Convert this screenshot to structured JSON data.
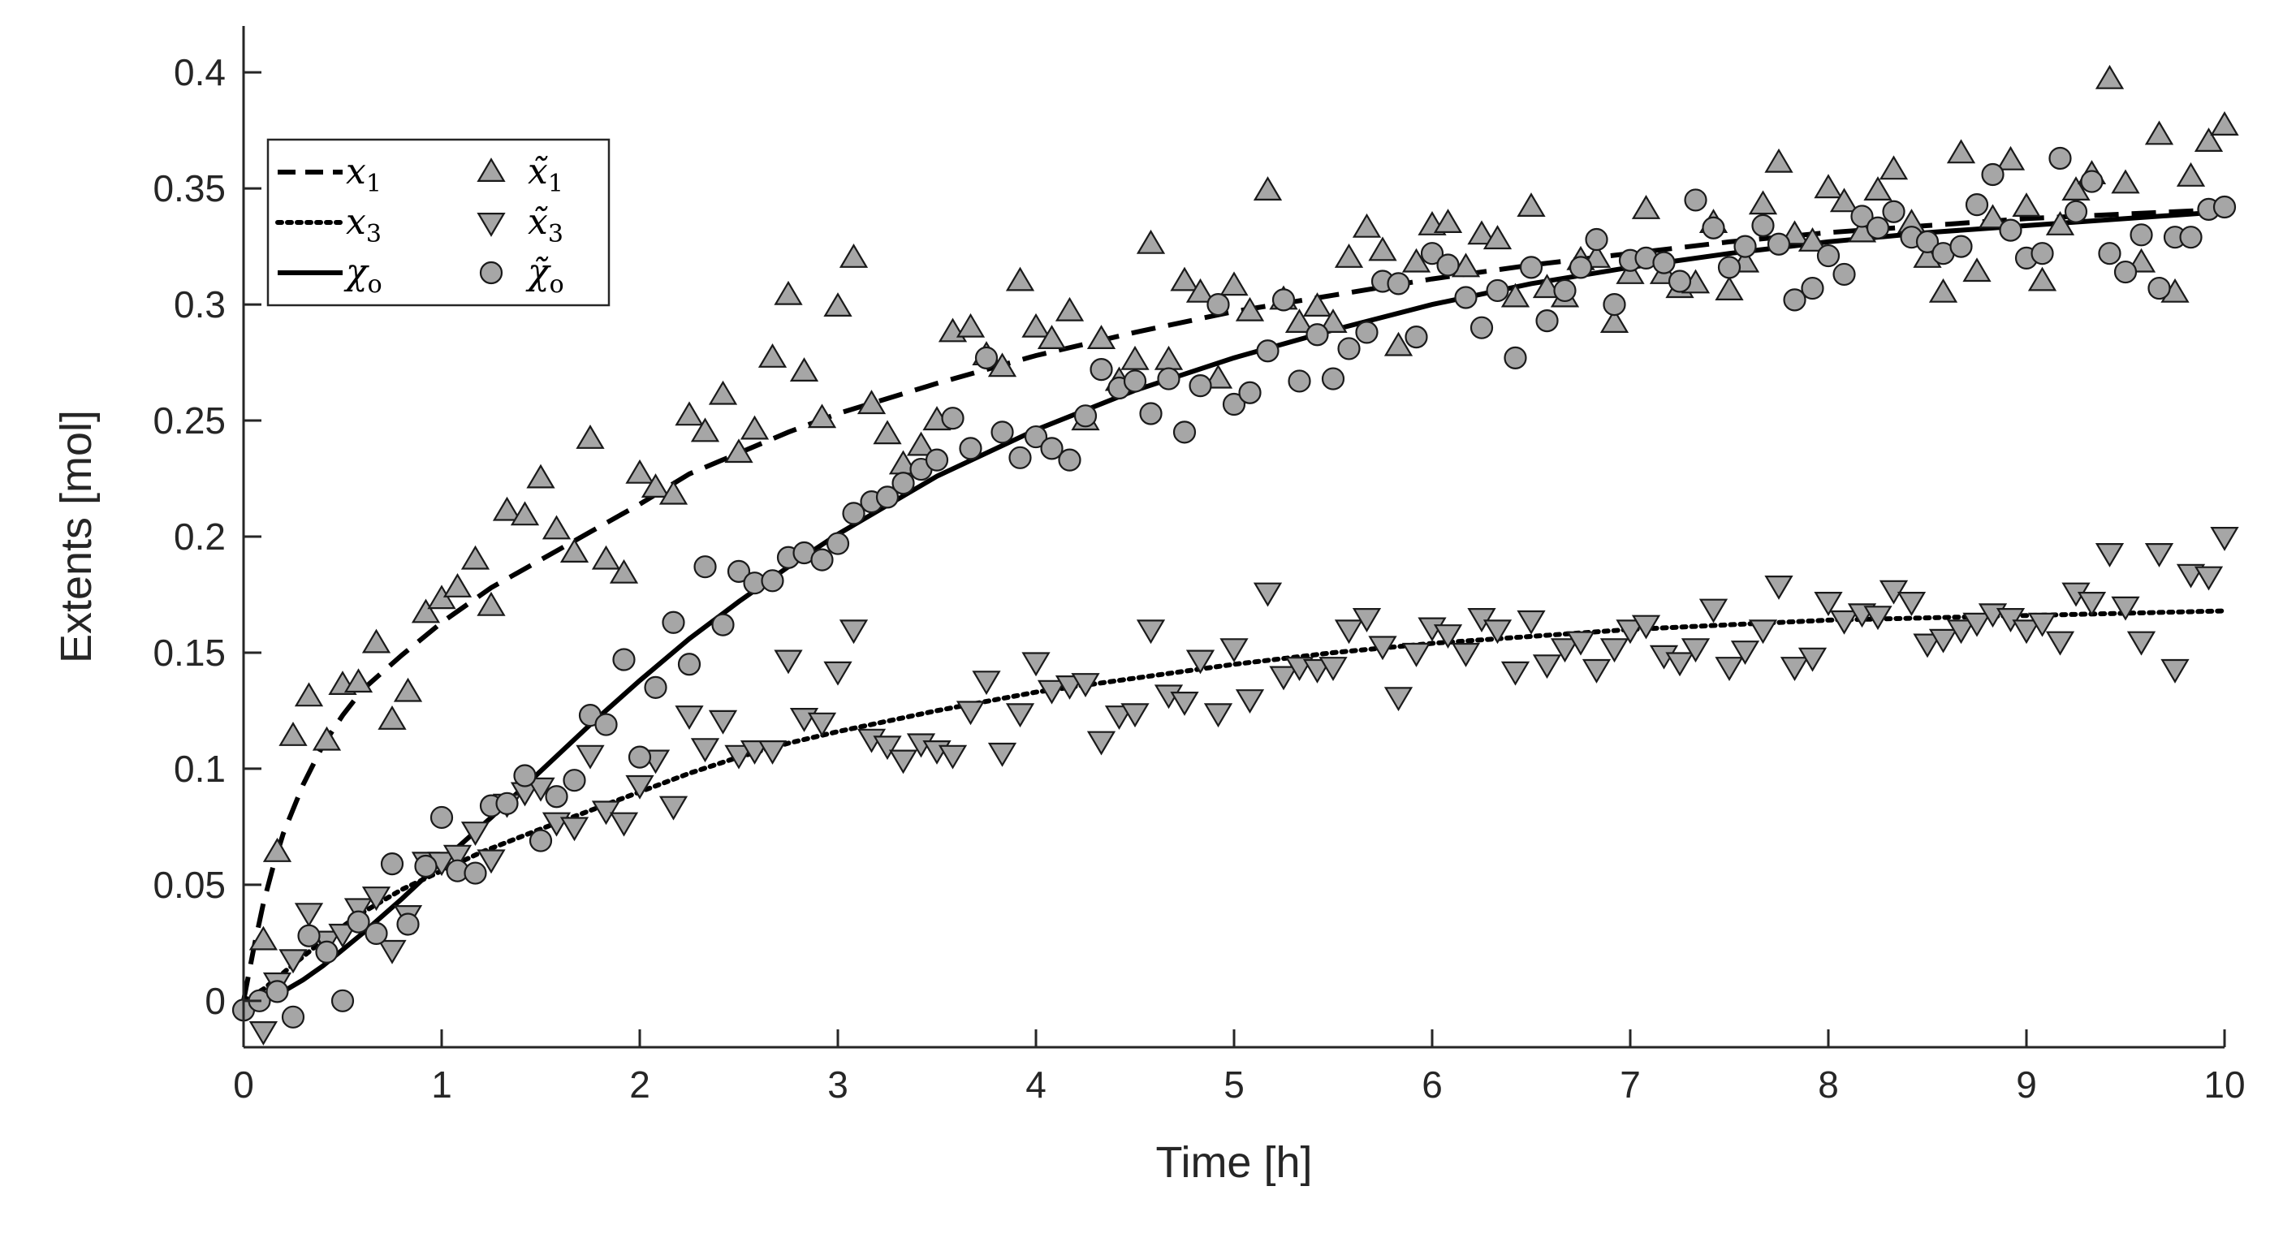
{
  "chart_data": {
    "type": "line+scatter",
    "title": "",
    "xlabel": "Time [h]",
    "ylabel": "Extents [mol]",
    "xlim": [
      0,
      10
    ],
    "ylim": [
      -0.02,
      0.42
    ],
    "xticks": [
      0,
      1,
      2,
      3,
      4,
      5,
      6,
      7,
      8,
      9,
      10
    ],
    "xtick_labels": [
      "0",
      "1",
      "2",
      "3",
      "4",
      "5",
      "6",
      "7",
      "8",
      "9",
      "10"
    ],
    "yticks": [
      0,
      0.05,
      0.1,
      0.15,
      0.2,
      0.25,
      0.3,
      0.35,
      0.4
    ],
    "ytick_labels": [
      "0",
      "0.05",
      "0.1",
      "0.15",
      "0.2",
      "0.25",
      "0.3",
      "0.35",
      "0.4"
    ],
    "grid": false,
    "legend_position": "top-left",
    "colors": {
      "line": "#000000",
      "marker_fill": "#a6a6a6",
      "marker_edge": "#1a1a1a",
      "axis": "#262626"
    },
    "lines": [
      {
        "name": "x1",
        "legend_label": "x",
        "legend_sub": "1",
        "style": "dashed",
        "x": [
          0,
          0.05,
          0.1,
          0.15,
          0.2,
          0.3,
          0.4,
          0.5,
          0.6,
          0.8,
          1.0,
          1.25,
          1.5,
          1.75,
          2.0,
          2.25,
          2.5,
          2.75,
          3.0,
          3.5,
          4.0,
          4.5,
          5.0,
          5.5,
          6.0,
          6.5,
          7.0,
          7.5,
          8.0,
          8.5,
          9.0,
          9.5,
          10.0
        ],
        "y": [
          0,
          0.022,
          0.042,
          0.058,
          0.072,
          0.093,
          0.11,
          0.123,
          0.134,
          0.149,
          0.163,
          0.178,
          0.19,
          0.202,
          0.214,
          0.227,
          0.236,
          0.245,
          0.253,
          0.266,
          0.278,
          0.288,
          0.297,
          0.304,
          0.311,
          0.317,
          0.322,
          0.327,
          0.331,
          0.334,
          0.337,
          0.339,
          0.341
        ]
      },
      {
        "name": "x3",
        "legend_label": "x",
        "legend_sub": "3",
        "style": "dotted",
        "x": [
          0,
          0.1,
          0.2,
          0.3,
          0.4,
          0.5,
          0.6,
          0.7,
          0.8,
          1.0,
          1.2,
          1.5,
          1.75,
          2.0,
          2.25,
          2.5,
          2.75,
          3.0,
          3.5,
          4.0,
          4.5,
          5.0,
          5.5,
          6.0,
          6.5,
          7.0,
          7.5,
          8.0,
          8.5,
          9.0,
          9.5,
          10.0
        ],
        "y": [
          0,
          0.005,
          0.012,
          0.019,
          0.026,
          0.032,
          0.038,
          0.043,
          0.048,
          0.056,
          0.064,
          0.074,
          0.082,
          0.09,
          0.098,
          0.105,
          0.111,
          0.116,
          0.125,
          0.133,
          0.139,
          0.145,
          0.15,
          0.154,
          0.157,
          0.16,
          0.162,
          0.164,
          0.165,
          0.166,
          0.167,
          0.168
        ]
      },
      {
        "name": "chi_o",
        "legend_label": "χ",
        "legend_sub": "o",
        "style": "solid",
        "x": [
          0,
          0.1,
          0.2,
          0.3,
          0.4,
          0.5,
          0.6,
          0.8,
          1.0,
          1.25,
          1.5,
          1.75,
          2.0,
          2.25,
          2.5,
          2.75,
          3.0,
          3.5,
          4.0,
          4.5,
          5.0,
          5.5,
          6.0,
          6.5,
          7.0,
          7.5,
          8.0,
          8.5,
          9.0,
          9.5,
          10.0
        ],
        "y": [
          0,
          0.001,
          0.004,
          0.009,
          0.015,
          0.022,
          0.029,
          0.044,
          0.06,
          0.079,
          0.099,
          0.119,
          0.138,
          0.156,
          0.172,
          0.187,
          0.201,
          0.226,
          0.246,
          0.263,
          0.277,
          0.289,
          0.3,
          0.309,
          0.316,
          0.322,
          0.327,
          0.331,
          0.334,
          0.337,
          0.34
        ]
      }
    ],
    "markers": [
      {
        "name": "x1_tilde",
        "legend_label": "x̃",
        "legend_sub": "1",
        "shape": "triangle-up",
        "x": [
          0.1,
          0.17,
          0.25,
          0.33,
          0.42,
          0.5,
          0.58,
          0.67,
          0.75,
          0.83,
          0.92,
          1.0,
          1.08,
          1.17,
          1.25,
          1.33,
          1.42,
          1.5,
          1.58,
          1.67,
          1.75,
          1.83,
          1.92,
          2.0,
          2.08,
          2.17,
          2.25,
          2.33,
          2.42,
          2.5,
          2.58,
          2.67,
          2.75,
          2.83,
          2.92,
          3.0,
          3.08,
          3.17,
          3.25,
          3.33,
          3.42,
          3.5,
          3.58,
          3.67,
          3.75,
          3.83,
          3.92,
          4.0,
          4.08,
          4.17,
          4.25,
          4.33,
          4.42,
          4.5,
          4.58,
          4.67,
          4.75,
          4.83,
          4.92,
          5.0,
          5.08,
          5.17,
          5.25,
          5.33,
          5.42,
          5.5,
          5.58,
          5.67,
          5.75,
          5.83,
          5.92,
          6.0,
          6.08,
          6.17,
          6.25,
          6.33,
          6.42,
          6.5,
          6.58,
          6.67,
          6.75,
          6.83,
          6.92,
          7.0,
          7.08,
          7.17,
          7.25,
          7.33,
          7.42,
          7.5,
          7.58,
          7.67,
          7.75,
          7.83,
          7.92,
          8.0,
          8.08,
          8.17,
          8.25,
          8.33,
          8.42,
          8.5,
          8.58,
          8.67,
          8.75,
          8.83,
          8.92,
          9.0,
          9.08,
          9.17,
          9.25,
          9.33,
          9.42,
          9.5,
          9.58,
          9.67,
          9.75,
          9.83,
          9.92,
          10.0
        ],
        "y": [
          0.026,
          0.064,
          0.114,
          0.131,
          0.112,
          0.136,
          0.137,
          0.154,
          0.121,
          0.133,
          0.167,
          0.173,
          0.178,
          0.19,
          0.17,
          0.211,
          0.209,
          0.225,
          0.203,
          0.193,
          0.242,
          0.19,
          0.184,
          0.227,
          0.221,
          0.218,
          0.252,
          0.245,
          0.261,
          0.236,
          0.246,
          0.277,
          0.304,
          0.271,
          0.251,
          0.299,
          0.32,
          0.257,
          0.244,
          0.231,
          0.239,
          0.25,
          0.288,
          0.29,
          0.278,
          0.273,
          0.31,
          0.29,
          0.285,
          0.297,
          0.25,
          0.285,
          0.267,
          0.276,
          0.326,
          0.276,
          0.31,
          0.305,
          0.268,
          0.308,
          0.297,
          0.349,
          0.302,
          0.292,
          0.299,
          0.292,
          0.32,
          0.333,
          0.323,
          0.282,
          0.318,
          0.334,
          0.335,
          0.316,
          0.33,
          0.328,
          0.303,
          0.342,
          0.307,
          0.303,
          0.319,
          0.32,
          0.292,
          0.313,
          0.341,
          0.313,
          0.307,
          0.309,
          0.335,
          0.306,
          0.318,
          0.343,
          0.361,
          0.33,
          0.327,
          0.35,
          0.344,
          0.331,
          0.349,
          0.358,
          0.335,
          0.32,
          0.305,
          0.365,
          0.314,
          0.337,
          0.362,
          0.342,
          0.31,
          0.334,
          0.349,
          0.356,
          0.397,
          0.352,
          0.318,
          0.373,
          0.305,
          0.355,
          0.37,
          0.377
        ]
      },
      {
        "name": "x3_tilde",
        "legend_label": "x̃",
        "legend_sub": "3",
        "shape": "triangle-down",
        "x": [
          0.1,
          0.17,
          0.25,
          0.33,
          0.42,
          0.5,
          0.58,
          0.67,
          0.75,
          0.83,
          0.92,
          1.0,
          1.08,
          1.17,
          1.25,
          1.33,
          1.42,
          1.5,
          1.58,
          1.67,
          1.75,
          1.83,
          1.92,
          2.0,
          2.08,
          2.17,
          2.25,
          2.33,
          2.42,
          2.5,
          2.58,
          2.67,
          2.75,
          2.83,
          2.92,
          3.0,
          3.08,
          3.17,
          3.25,
          3.33,
          3.42,
          3.5,
          3.58,
          3.67,
          3.75,
          3.83,
          3.92,
          4.0,
          4.08,
          4.17,
          4.25,
          4.33,
          4.42,
          4.5,
          4.58,
          4.67,
          4.75,
          4.83,
          4.92,
          5.0,
          5.08,
          5.17,
          5.25,
          5.33,
          5.42,
          5.5,
          5.58,
          5.67,
          5.75,
          5.83,
          5.92,
          6.0,
          6.08,
          6.17,
          6.25,
          6.33,
          6.42,
          6.5,
          6.58,
          6.67,
          6.75,
          6.83,
          6.92,
          7.0,
          7.08,
          7.17,
          7.25,
          7.33,
          7.42,
          7.5,
          7.58,
          7.67,
          7.75,
          7.83,
          7.92,
          8.0,
          8.08,
          8.17,
          8.25,
          8.33,
          8.42,
          8.5,
          8.58,
          8.67,
          8.75,
          8.83,
          8.92,
          9.0,
          9.08,
          9.17,
          9.25,
          9.33,
          9.42,
          9.5,
          9.58,
          9.67,
          9.75,
          9.83,
          9.92,
          10.0
        ],
        "y": [
          -0.013,
          0.008,
          0.018,
          0.038,
          0.026,
          0.029,
          0.04,
          0.045,
          0.022,
          0.037,
          0.06,
          0.06,
          0.063,
          0.073,
          0.061,
          0.085,
          0.09,
          0.092,
          0.077,
          0.075,
          0.106,
          0.082,
          0.077,
          0.093,
          0.104,
          0.084,
          0.123,
          0.109,
          0.121,
          0.106,
          0.108,
          0.108,
          0.147,
          0.122,
          0.12,
          0.142,
          0.16,
          0.113,
          0.11,
          0.104,
          0.111,
          0.108,
          0.106,
          0.125,
          0.138,
          0.107,
          0.124,
          0.146,
          0.134,
          0.136,
          0.137,
          0.112,
          0.123,
          0.124,
          0.16,
          0.132,
          0.129,
          0.147,
          0.124,
          0.152,
          0.13,
          0.176,
          0.14,
          0.144,
          0.143,
          0.144,
          0.16,
          0.165,
          0.153,
          0.131,
          0.15,
          0.161,
          0.158,
          0.15,
          0.165,
          0.16,
          0.142,
          0.164,
          0.145,
          0.152,
          0.155,
          0.143,
          0.152,
          0.16,
          0.162,
          0.149,
          0.146,
          0.152,
          0.169,
          0.144,
          0.151,
          0.16,
          0.179,
          0.144,
          0.148,
          0.172,
          0.164,
          0.167,
          0.166,
          0.177,
          0.172,
          0.154,
          0.156,
          0.16,
          0.163,
          0.167,
          0.165,
          0.16,
          0.163,
          0.155,
          0.176,
          0.172,
          0.193,
          0.17,
          0.155,
          0.193,
          0.143,
          0.184,
          0.183,
          0.2
        ]
      },
      {
        "name": "chi_o_tilde",
        "legend_label": "χ̃",
        "legend_sub": "o",
        "shape": "circle",
        "x": [
          0.0,
          0.08,
          0.17,
          0.25,
          0.33,
          0.42,
          0.5,
          0.58,
          0.67,
          0.75,
          0.83,
          0.92,
          1.0,
          1.08,
          1.17,
          1.25,
          1.33,
          1.42,
          1.5,
          1.58,
          1.67,
          1.75,
          1.83,
          1.92,
          2.0,
          2.08,
          2.17,
          2.25,
          2.33,
          2.42,
          2.5,
          2.58,
          2.67,
          2.75,
          2.83,
          2.92,
          3.0,
          3.08,
          3.17,
          3.25,
          3.33,
          3.42,
          3.5,
          3.58,
          3.67,
          3.75,
          3.83,
          3.92,
          4.0,
          4.08,
          4.17,
          4.25,
          4.33,
          4.42,
          4.5,
          4.58,
          4.67,
          4.75,
          4.83,
          4.92,
          5.0,
          5.08,
          5.17,
          5.25,
          5.33,
          5.42,
          5.5,
          5.58,
          5.67,
          5.75,
          5.83,
          5.92,
          6.0,
          6.08,
          6.17,
          6.25,
          6.33,
          6.42,
          6.5,
          6.58,
          6.67,
          6.75,
          6.83,
          6.92,
          7.0,
          7.08,
          7.17,
          7.25,
          7.33,
          7.42,
          7.5,
          7.58,
          7.67,
          7.75,
          7.83,
          7.92,
          8.0,
          8.08,
          8.17,
          8.25,
          8.33,
          8.42,
          8.5,
          8.58,
          8.67,
          8.75,
          8.83,
          8.92,
          9.0,
          9.08,
          9.17,
          9.25,
          9.33,
          9.42,
          9.5,
          9.58,
          9.67,
          9.75,
          9.83,
          9.92,
          10.0
        ],
        "y": [
          -0.004,
          0.0,
          0.004,
          -0.007,
          0.028,
          0.021,
          0.0,
          0.034,
          0.029,
          0.059,
          0.033,
          0.058,
          0.079,
          0.056,
          0.055,
          0.084,
          0.085,
          0.097,
          0.069,
          0.088,
          0.095,
          0.123,
          0.119,
          0.147,
          0.105,
          0.135,
          0.163,
          0.145,
          0.187,
          0.162,
          0.185,
          0.18,
          0.181,
          0.191,
          0.193,
          0.19,
          0.197,
          0.21,
          0.215,
          0.217,
          0.223,
          0.229,
          0.233,
          0.251,
          0.238,
          0.277,
          0.245,
          0.234,
          0.243,
          0.238,
          0.233,
          0.252,
          0.272,
          0.264,
          0.267,
          0.253,
          0.268,
          0.245,
          0.265,
          0.3,
          0.257,
          0.262,
          0.28,
          0.302,
          0.267,
          0.287,
          0.268,
          0.281,
          0.288,
          0.31,
          0.309,
          0.286,
          0.322,
          0.317,
          0.303,
          0.29,
          0.306,
          0.277,
          0.316,
          0.293,
          0.306,
          0.316,
          0.328,
          0.3,
          0.319,
          0.32,
          0.318,
          0.31,
          0.345,
          0.333,
          0.316,
          0.325,
          0.334,
          0.326,
          0.302,
          0.307,
          0.321,
          0.313,
          0.338,
          0.333,
          0.34,
          0.329,
          0.327,
          0.322,
          0.325,
          0.343,
          0.356,
          0.332,
          0.32,
          0.322,
          0.363,
          0.34,
          0.353,
          0.322,
          0.314,
          0.33,
          0.307,
          0.329,
          0.329,
          0.341,
          0.342
        ]
      }
    ]
  }
}
